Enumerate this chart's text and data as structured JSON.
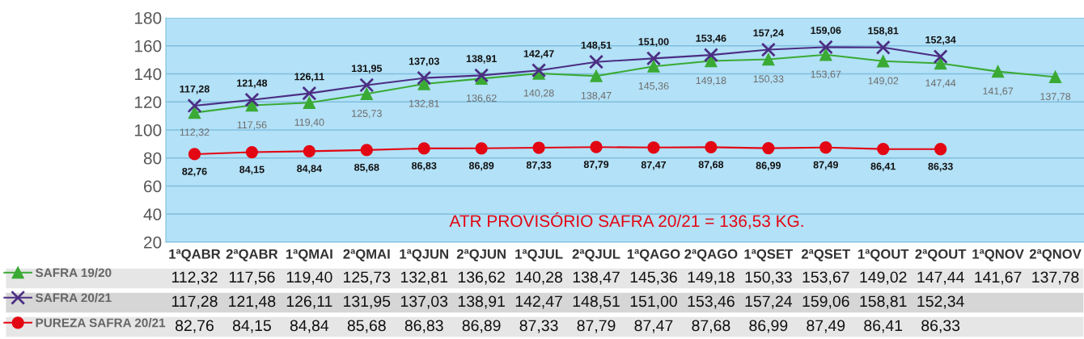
{
  "chart_data": {
    "type": "line",
    "categories": [
      "1ªQABR",
      "2ªQABR",
      "1ªQMAI",
      "2ªQMAI",
      "1ªQJUN",
      "2ªQJUN",
      "1ªQJUL",
      "2ªQJUL",
      "1ªQAGO",
      "2ªQAGO",
      "1ªQSET",
      "2ªQSET",
      "1ªQOUT",
      "2ªQOUT",
      "1ªQNOV",
      "2ªQNOV"
    ],
    "series": [
      {
        "name": "SAFRA 19/20",
        "color": "#3aaa35",
        "marker": "triangle",
        "values": [
          112.32,
          117.56,
          119.4,
          125.73,
          132.81,
          136.62,
          140.28,
          138.47,
          145.36,
          149.18,
          150.33,
          153.67,
          149.02,
          147.44,
          141.67,
          137.78
        ],
        "value_labels": [
          "112,32",
          "117,56",
          "119,40",
          "125,73",
          "132,81",
          "136,62",
          "140,28",
          "138,47",
          "145,36",
          "149,18",
          "150,33",
          "153,67",
          "149,02",
          "147,44",
          "141,67",
          "137,78"
        ]
      },
      {
        "name": "SAFRA 20/21",
        "color": "#4b2e83",
        "marker": "cross",
        "values": [
          117.28,
          121.48,
          126.11,
          131.95,
          137.03,
          138.91,
          142.47,
          148.51,
          151.0,
          153.46,
          157.24,
          159.06,
          158.81,
          152.34,
          null,
          null
        ],
        "value_labels": [
          "117,28",
          "121,48",
          "126,11",
          "131,95",
          "137,03",
          "138,91",
          "142,47",
          "148,51",
          "151,00",
          "153,46",
          "157,24",
          "159,06",
          "158,81",
          "152,34",
          null,
          null
        ]
      },
      {
        "name": "PUREZA SAFRA 20/21",
        "color": "#e30613",
        "marker": "circle",
        "values": [
          82.76,
          84.15,
          84.84,
          85.68,
          86.83,
          86.89,
          87.33,
          87.79,
          87.47,
          87.68,
          86.99,
          87.49,
          86.41,
          86.33,
          null,
          null
        ],
        "value_labels": [
          "82,76",
          "84,15",
          "84,84",
          "85,68",
          "86,83",
          "86,89",
          "87,33",
          "87,79",
          "87,47",
          "87,68",
          "86,99",
          "87,49",
          "86,41",
          "86,33",
          null,
          null
        ]
      }
    ],
    "ylim": [
      20,
      180
    ],
    "yticks": [
      20,
      40,
      60,
      80,
      100,
      120,
      140,
      160,
      180
    ],
    "grid": "y",
    "legend": "bottom left",
    "annotations": [
      "ATR PROVISÓRIO SAFRA 20/21 = 136,53 KG."
    ]
  }
}
